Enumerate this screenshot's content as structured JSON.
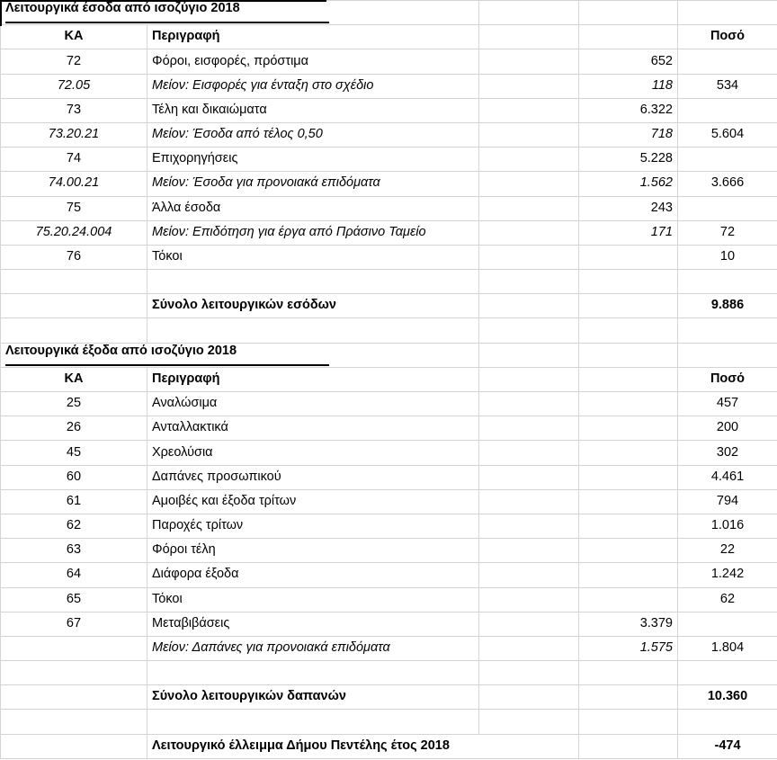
{
  "app": "spreadsheet",
  "colors": {
    "gridline": "#d4d4d4",
    "text": "#000000",
    "title_rule": "#000000",
    "background": "#ffffff"
  },
  "table": {
    "columns": {
      "code": "ΚΑ",
      "description": "Περιγραφή",
      "amount": "Ποσό"
    },
    "rows": [
      {
        "type": "title",
        "text": "Λειτουργικά έσοδα από ισοζύγιο 2018"
      },
      {
        "type": "header",
        "code": "ΚΑ",
        "desc": "Περιγραφή",
        "amount": "Ποσό"
      },
      {
        "type": "item",
        "code": "72",
        "desc": "Φόροι, εισφορές, πρόστιμα",
        "sub": "652",
        "amount": ""
      },
      {
        "type": "minus",
        "code": "72.05",
        "desc": "Μείον: Εισφορές για ένταξη στο σχέδιο",
        "sub": "118",
        "amount": "534"
      },
      {
        "type": "item",
        "code": "73",
        "desc": "Τέλη και δικαιώματα",
        "sub": "6.322",
        "amount": ""
      },
      {
        "type": "minus",
        "code": "73.20.21",
        "desc": "Μείον: Έσοδα από τέλος 0,50",
        "sub": "718",
        "amount": "5.604"
      },
      {
        "type": "item",
        "code": "74",
        "desc": "Επιχορηγήσεις",
        "sub": "5.228",
        "amount": ""
      },
      {
        "type": "minus",
        "code": "74.00.21",
        "desc": "Μείον: Έσοδα για προνοιακά επιδόματα",
        "sub": "1.562",
        "amount": "3.666"
      },
      {
        "type": "item",
        "code": "75",
        "desc": "Άλλα έσοδα",
        "sub": "243",
        "amount": ""
      },
      {
        "type": "minus",
        "code": "75.20.24.004",
        "desc": "Μείον: Επιδότηση για έργα από Πράσινο Ταμείο",
        "sub": "171",
        "amount": "72"
      },
      {
        "type": "item",
        "code": "76",
        "desc": "Τόκοι",
        "sub": "",
        "amount": "10"
      },
      {
        "type": "blank"
      },
      {
        "type": "total",
        "code": "",
        "desc": "Σύνολο λειτουργικών εσόδων",
        "sub": "",
        "amount": "9.886"
      },
      {
        "type": "blank"
      },
      {
        "type": "title",
        "text": "Λειτουργικά έξοδα από ισοζύγιο 2018"
      },
      {
        "type": "header",
        "code": "ΚΑ",
        "desc": "Περιγραφή",
        "amount": "Ποσό"
      },
      {
        "type": "item",
        "code": "25",
        "desc": "Αναλώσιμα",
        "sub": "",
        "amount": "457"
      },
      {
        "type": "item",
        "code": "26",
        "desc": "Ανταλλακτικά",
        "sub": "",
        "amount": "200"
      },
      {
        "type": "item",
        "code": "45",
        "desc": "Χρεολύσια",
        "sub": "",
        "amount": "302"
      },
      {
        "type": "item",
        "code": "60",
        "desc": "Δαπάνες προσωπικού",
        "sub": "",
        "amount": "4.461"
      },
      {
        "type": "item",
        "code": "61",
        "desc": "Αμοιβές και έξοδα τρίτων",
        "sub": "",
        "amount": "794"
      },
      {
        "type": "item",
        "code": "62",
        "desc": "Παροχές τρίτων",
        "sub": "",
        "amount": "1.016"
      },
      {
        "type": "item",
        "code": "63",
        "desc": "Φόροι τέλη",
        "sub": "",
        "amount": "22"
      },
      {
        "type": "item",
        "code": "64",
        "desc": "Διάφορα έξοδα",
        "sub": "",
        "amount": "1.242"
      },
      {
        "type": "item",
        "code": "65",
        "desc": "Τόκοι",
        "sub": "",
        "amount": "62"
      },
      {
        "type": "item",
        "code": "67",
        "desc": "Μεταβιβάσεις",
        "sub": "3.379",
        "amount": ""
      },
      {
        "type": "minus",
        "code": "",
        "desc": "Μείον: Δαπάνες για προνοιακά επιδόματα",
        "sub": "1.575",
        "amount": "1.804"
      },
      {
        "type": "blank"
      },
      {
        "type": "total",
        "code": "",
        "desc": "Σύνολο λειτουργικών δαπανών",
        "sub": "",
        "amount": "10.360"
      },
      {
        "type": "blank"
      },
      {
        "type": "total",
        "merge": true,
        "code": "",
        "desc": "Λειτουργικό έλλειμμα Δήμου Πεντέλης έτος 2018",
        "sub": "",
        "amount": "-474"
      }
    ]
  }
}
